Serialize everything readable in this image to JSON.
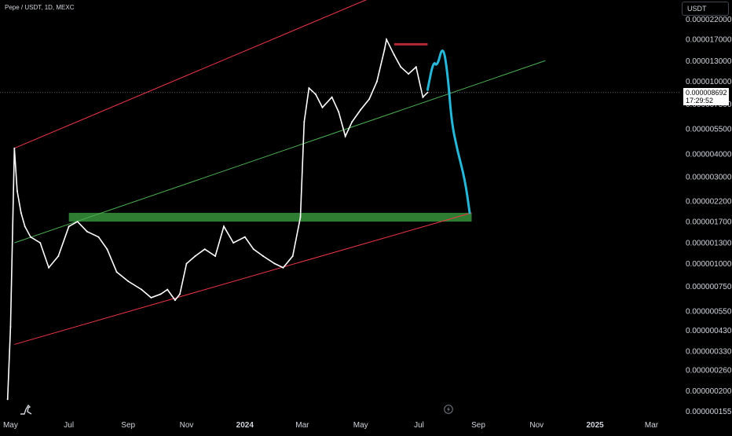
{
  "header": {
    "symbol_title": "Pepe / USDT, 1D, MEXC",
    "currency": "USDT"
  },
  "current_price": {
    "value": "0.000008692",
    "countdown": "17:29:52"
  },
  "icons": {
    "logo": "tradingview-logo-icon",
    "flash": "lightning-icon"
  },
  "colors": {
    "background": "#000000",
    "candles": "#ffffff",
    "channel": "#f23645",
    "midline": "#4caf50",
    "support_zone": "#2e7d32",
    "resistance_marker": "#b22833",
    "projection": "#29b6d6"
  },
  "chart_data": {
    "type": "line",
    "title": "",
    "scale": "log",
    "grid": false,
    "y_tick_labels": [
      "0.000022000",
      "0.000017000",
      "0.000013000",
      "0.000010000",
      "0.0000075",
      "0.0000055",
      "0.0000040",
      "0.0000030",
      "0.0000022",
      "0.0000017",
      "0.0000013",
      "0.0000010",
      "0.00000075",
      "0.00000055",
      "0.00000043",
      "0.00000033",
      "0.00000026",
      "0.00000020",
      "0.000000155"
    ],
    "y_tick_text": [
      "0.000022000",
      "0.000017000",
      "0.000013000",
      "0.000010000",
      "0.000007500",
      "0.000005500",
      "0.000004000",
      "0.000003000",
      "0.000002200",
      "0.000001700",
      "0.000001300",
      "0.000001000",
      "0.000000750",
      "0.000000550",
      "0.000000430",
      "0.000000330",
      "0.000000260",
      "0.000000200",
      "0.000000155"
    ],
    "x_tick_labels": [
      "May",
      "Jul",
      "Sep",
      "Nov",
      "2024",
      "Mar",
      "May",
      "Jul",
      "Sep",
      "Nov",
      "2025",
      "Mar"
    ],
    "x_range": [
      "2023-04-20",
      "2025-03-31"
    ],
    "y_range": [
      1.45e-07,
      2.8e-05
    ],
    "series": [
      {
        "values": [
          [
            "2023-04-28",
            1.8e-07
          ],
          [
            "2023-05-01",
            4.5e-07
          ],
          [
            "2023-05-05",
            4.3e-06
          ],
          [
            "2023-05-08",
            2.5e-06
          ],
          [
            "2023-05-12",
            1.9e-06
          ],
          [
            "2023-05-16",
            1.6e-06
          ],
          [
            "2023-05-22",
            1.4e-06
          ],
          [
            "2023-06-01",
            1.3e-06
          ],
          [
            "2023-06-10",
            9.5e-07
          ],
          [
            "2023-06-20",
            1.1e-06
          ],
          [
            "2023-07-01",
            1.6e-06
          ],
          [
            "2023-07-10",
            1.7e-06
          ],
          [
            "2023-07-20",
            1.5e-06
          ],
          [
            "2023-08-01",
            1.4e-06
          ],
          [
            "2023-08-10",
            1.2e-06
          ],
          [
            "2023-08-20",
            9e-07
          ],
          [
            "2023-09-01",
            8e-07
          ],
          [
            "2023-09-15",
            7.2e-07
          ],
          [
            "2023-09-25",
            6.5e-07
          ],
          [
            "2023-10-05",
            6.8e-07
          ],
          [
            "2023-10-12",
            7.2e-07
          ],
          [
            "2023-10-20",
            6.3e-07
          ],
          [
            "2023-10-25",
            6.8e-07
          ],
          [
            "2023-11-01",
            1e-06
          ],
          [
            "2023-11-10",
            1.1e-06
          ],
          [
            "2023-11-20",
            1.2e-06
          ],
          [
            "2023-12-01",
            1.1e-06
          ],
          [
            "2023-12-10",
            1.6e-06
          ],
          [
            "2023-12-20",
            1.3e-06
          ],
          [
            "2024-01-01",
            1.4e-06
          ],
          [
            "2024-01-10",
            1.2e-06
          ],
          [
            "2024-01-20",
            1.1e-06
          ],
          [
            "2024-02-01",
            1e-06
          ],
          [
            "2024-02-10",
            9.5e-07
          ],
          [
            "2024-02-20",
            1.1e-06
          ],
          [
            "2024-02-28",
            1.8e-06
          ],
          [
            "2024-03-03",
            6e-06
          ],
          [
            "2024-03-08",
            9.2e-06
          ],
          [
            "2024-03-15",
            8.5e-06
          ],
          [
            "2024-03-22",
            7.2e-06
          ],
          [
            "2024-04-01",
            8.2e-06
          ],
          [
            "2024-04-08",
            6.8e-06
          ],
          [
            "2024-04-15",
            5e-06
          ],
          [
            "2024-04-22",
            6e-06
          ],
          [
            "2024-05-01",
            7e-06
          ],
          [
            "2024-05-10",
            8e-06
          ],
          [
            "2024-05-18",
            1e-05
          ],
          [
            "2024-05-26",
            1.5e-05
          ],
          [
            "2024-05-28",
            1.7e-05
          ],
          [
            "2024-06-05",
            1.4e-05
          ],
          [
            "2024-06-12",
            1.2e-05
          ],
          [
            "2024-06-20",
            1.1e-05
          ],
          [
            "2024-06-28",
            1.2e-05
          ],
          [
            "2024-07-05",
            8.2e-06
          ],
          [
            "2024-07-10",
            8.7e-06
          ]
        ]
      }
    ],
    "annotations": {
      "channel_upper": [
        [
          "2023-05-05",
          4.3e-06
        ],
        [
          "2024-06-30",
          3.7e-05
        ]
      ],
      "channel_lower": [
        [
          "2023-05-05",
          3.6e-07
        ],
        [
          "2024-08-25",
          1.9e-06
        ]
      ],
      "channel_mid": [
        [
          "2023-05-05",
          1.3e-06
        ],
        [
          "2024-11-10",
          1.3e-05
        ]
      ],
      "support_zone": {
        "from": "2023-07-01",
        "to": "2024-08-25",
        "low": 1.7e-06,
        "high": 1.9e-06
      },
      "resistance_marker": {
        "from": "2024-06-05",
        "to": "2024-07-10",
        "value": 1.6e-05
      },
      "projection": [
        [
          "2024-07-10",
          9e-06
        ],
        [
          "2024-07-16",
          1.3e-05
        ],
        [
          "2024-07-20",
          1.2e-05
        ],
        [
          "2024-07-26",
          1.6e-05
        ],
        [
          "2024-07-31",
          1.1e-05
        ],
        [
          "2024-08-04",
          6e-06
        ],
        [
          "2024-08-10",
          4.2e-06
        ],
        [
          "2024-08-18",
          2.9e-06
        ],
        [
          "2024-08-23",
          1.9e-06
        ]
      ]
    }
  }
}
